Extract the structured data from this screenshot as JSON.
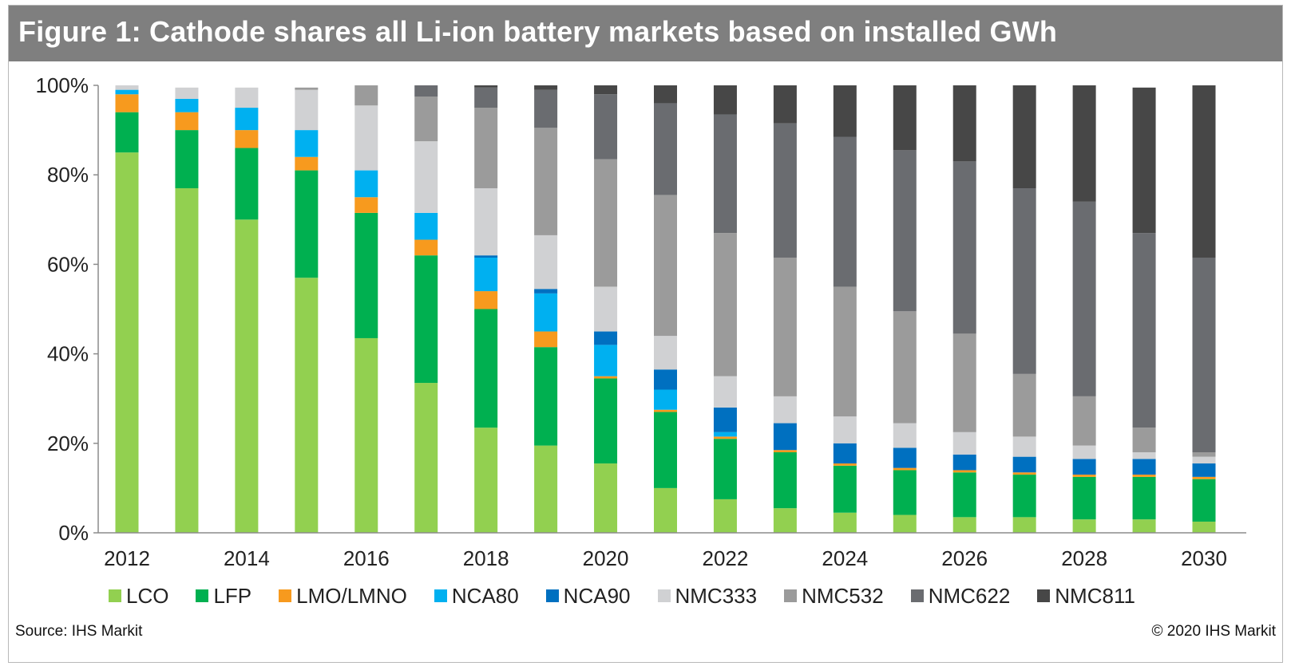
{
  "figure": {
    "title": "Figure 1: Cathode shares all Li-ion battery markets based on installed GWh",
    "source": "Source: IHS Markit",
    "copyright": "© 2020 IHS Markit"
  },
  "chart_data": {
    "type": "bar",
    "stacked": true,
    "title": "Figure 1: Cathode shares all Li-ion battery markets based on installed GWh",
    "xlabel": "",
    "ylabel": "",
    "ylim": [
      0,
      100
    ],
    "y_ticks": [
      "0%",
      "20%",
      "40%",
      "60%",
      "80%",
      "100%"
    ],
    "y_tick_values": [
      0,
      20,
      40,
      60,
      80,
      100
    ],
    "x": [
      2012,
      2013,
      2014,
      2015,
      2016,
      2017,
      2018,
      2019,
      2020,
      2021,
      2022,
      2023,
      2024,
      2025,
      2026,
      2027,
      2028,
      2029,
      2030
    ],
    "x_tick_labels": [
      "2012",
      "",
      "2014",
      "",
      "2016",
      "",
      "2018",
      "",
      "2020",
      "",
      "2022",
      "",
      "2024",
      "",
      "2026",
      "",
      "2028",
      "",
      "2030"
    ],
    "grid": false,
    "legend_position": "bottom",
    "series": [
      {
        "name": "LCO",
        "color": "#92d050",
        "values": [
          85,
          77,
          70,
          57,
          43.5,
          33.5,
          23.5,
          19.5,
          15.5,
          10,
          7.5,
          5.5,
          4.5,
          4,
          3.5,
          3.5,
          3,
          3,
          2.5
        ]
      },
      {
        "name": "LFP",
        "color": "#00b050",
        "values": [
          9,
          13,
          16,
          24,
          28,
          28.5,
          26.5,
          22,
          19,
          17,
          13.5,
          12.5,
          10.5,
          10,
          10,
          9.5,
          9.5,
          9.5,
          9.5
        ]
      },
      {
        "name": "LMO/LMNO",
        "color": "#f79a1e",
        "values": [
          4,
          4,
          4,
          3,
          3.5,
          3.5,
          4,
          3.5,
          0.5,
          0.5,
          0.5,
          0.5,
          0.5,
          0.5,
          0.5,
          0.5,
          0.5,
          0.5,
          0.5
        ]
      },
      {
        "name": "NCA80",
        "color": "#00b0f0",
        "values": [
          1,
          3,
          5,
          6,
          6,
          6,
          7.5,
          8.5,
          7,
          4.5,
          1,
          0,
          0,
          0,
          0,
          0,
          0,
          0,
          0
        ]
      },
      {
        "name": "NCA90",
        "color": "#0070c0",
        "values": [
          0,
          0,
          0,
          0,
          0,
          0,
          0.5,
          1,
          3,
          4.5,
          5.5,
          6,
          4.5,
          4.5,
          3.5,
          3.5,
          3.5,
          3.5,
          3
        ]
      },
      {
        "name": "NMC333",
        "color": "#d0d1d3",
        "values": [
          1,
          2.5,
          4.5,
          9,
          14.5,
          16,
          15,
          12,
          10,
          7.5,
          7,
          6,
          6,
          5.5,
          5,
          4.5,
          3,
          1.5,
          1.5
        ]
      },
      {
        "name": "NMC532",
        "color": "#9b9b9b",
        "values": [
          0,
          0,
          0,
          0.5,
          4.5,
          10,
          18,
          24,
          28.5,
          31.5,
          32,
          31,
          29,
          25,
          22,
          14,
          11,
          5.5,
          1
        ]
      },
      {
        "name": "NMC622",
        "color": "#6a6c70",
        "values": [
          0,
          0,
          0,
          0,
          0,
          2.5,
          4.5,
          8.5,
          14.5,
          20.5,
          26.5,
          30,
          33.5,
          36,
          38.5,
          41.5,
          43.5,
          43.5,
          43.5
        ]
      },
      {
        "name": "NMC811",
        "color": "#474747",
        "values": [
          0,
          0,
          0,
          0,
          0,
          0,
          0.5,
          1,
          2,
          4,
          6.5,
          8.5,
          11.5,
          14.5,
          17,
          23,
          26,
          32.5,
          38.5
        ]
      }
    ]
  }
}
